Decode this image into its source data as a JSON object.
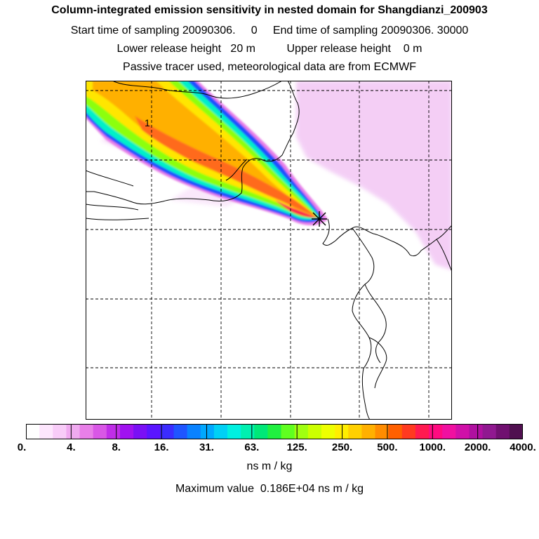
{
  "title": "Column-integrated emission sensitivity in nested domain for Shangdianzi_200903",
  "header_line2": "Start time of sampling 20090306.     0     End time of sampling 20090306. 30000",
  "header_line3": "Lower release height   20 m          Upper release height    0 m",
  "header_line4": "Passive tracer used, meteorological data are from ECMWF",
  "contour_label": "1",
  "colors": {
    "scale": [
      "#ffffff",
      "#fde6fd",
      "#f8ccf8",
      "#f0aaf0",
      "#e87fe8",
      "#d957e6",
      "#c02ee8",
      "#a012f0",
      "#7a10f5",
      "#5a16ff",
      "#3b2cff",
      "#1f55ff",
      "#0a82ff",
      "#00a8ff",
      "#00d0f5",
      "#00f0e0",
      "#00f0b0",
      "#00e878",
      "#20f040",
      "#60ff20",
      "#a0ff10",
      "#ccff00",
      "#eeff00",
      "#ffee00",
      "#ffd000",
      "#ffb000",
      "#ff8c00",
      "#ff6000",
      "#ff3a20",
      "#ff1a50",
      "#ff0a80",
      "#f010a0",
      "#d010a8",
      "#b010a0",
      "#901890",
      "#701070",
      "#501050"
    ],
    "plume_outer": "#e77fe8",
    "plume_edge": "#1e50ff",
    "plume_mid": "#00f0c8",
    "plume_green": "#8cff10",
    "plume_yellow": "#ffe600",
    "plume_orange": "#ffb000",
    "plume_core": "#ff6a1a",
    "plume_hot": "#ff1a50",
    "faint": "#f2c6f4"
  },
  "chart_data": {
    "type": "heatmap",
    "title": "Column-integrated emission sensitivity in nested domain for Shangdianzi_200903",
    "units_label": "ns m / kg",
    "colorbar_ticks": [
      "0.",
      "4.",
      "8.",
      "16.",
      "31.",
      "63.",
      "125.",
      "250.",
      "500.",
      "1000.",
      "2000.",
      "4000."
    ],
    "colorbar_values": [
      0,
      4,
      8,
      16,
      31,
      63,
      125,
      250,
      500,
      1000,
      2000,
      4000
    ],
    "max_value": 1860,
    "max_value_label": "Maximum value  0.186E+04 ns m / kg",
    "receptor": "Shangdianzi",
    "plume_direction": "north-west",
    "marker": "receptor-star"
  }
}
